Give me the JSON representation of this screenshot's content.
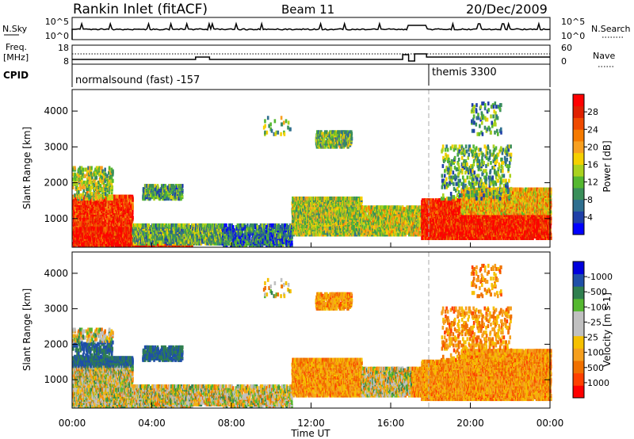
{
  "header": {
    "station": "Rankin Inlet (fitACF)",
    "beam": "Beam 11",
    "date": "20/Dec/2009"
  },
  "nsky_panel": {
    "left_label": "N.Sky",
    "left_ticks": [
      "10^5",
      "10^0"
    ],
    "right_label": "N.Search",
    "right_ticks": [
      "10^5",
      "10^0"
    ]
  },
  "freq_panel": {
    "left_label_1": "Freq.",
    "left_label_2": "[MHz]",
    "left_ticks": [
      "18",
      "8"
    ],
    "right_label": "Nave",
    "right_ticks": [
      "60",
      "0"
    ]
  },
  "cpid_panel": {
    "label": "CPID",
    "mode_1": "normalsound (fast) -157",
    "mode_2": "themis 3300"
  },
  "colors": {
    "power_scale": [
      "#0000ff",
      "#1f3fa8",
      "#2f6f8f",
      "#3a8f5a",
      "#55b830",
      "#aad21e",
      "#f5d000",
      "#f8a020",
      "#f57a00",
      "#ef4a00",
      "#e02000",
      "#ff0000"
    ],
    "velocity_scale": [
      "#ff0000",
      "#ff4000",
      "#f07000",
      "#f59f1e",
      "#f5c000",
      "#c0c0c0",
      "#c0c0c0",
      "#55b830",
      "#2f7f4f",
      "#1f4fa8",
      "#0000dd"
    ]
  },
  "chart_data": [
    {
      "type": "heatmap",
      "title": "Power",
      "xlabel": "",
      "ylabel": "Slant Range [km]",
      "x_ticks": [
        "00:00",
        "04:00",
        "08:00",
        "12:00",
        "16:00",
        "20:00",
        "00:00"
      ],
      "y_ticks": [
        "1000",
        "2000",
        "3000",
        "4000"
      ],
      "ylim": [
        200,
        4600
      ],
      "colorbar_label": "Power [dB]",
      "colorbar_ticks": [
        "4",
        "8",
        "12",
        "16",
        "20",
        "24",
        "28"
      ],
      "colorbar_range": [
        0,
        30
      ]
    },
    {
      "type": "heatmap",
      "title": "Velocity",
      "xlabel": "Time UT",
      "ylabel": "Slant Range [km]",
      "x_ticks": [
        "00:00",
        "04:00",
        "08:00",
        "12:00",
        "16:00",
        "20:00",
        "00:00"
      ],
      "y_ticks": [
        "1000",
        "2000",
        "3000",
        "4000"
      ],
      "ylim": [
        200,
        4600
      ],
      "colorbar_label": "Velocity [m s-1]",
      "colorbar_ticks": [
        "1000",
        "500",
        "100",
        "25",
        "-25",
        "-100",
        "-500",
        "-1000"
      ],
      "colorbar_range": [
        -1000,
        1000
      ]
    }
  ]
}
